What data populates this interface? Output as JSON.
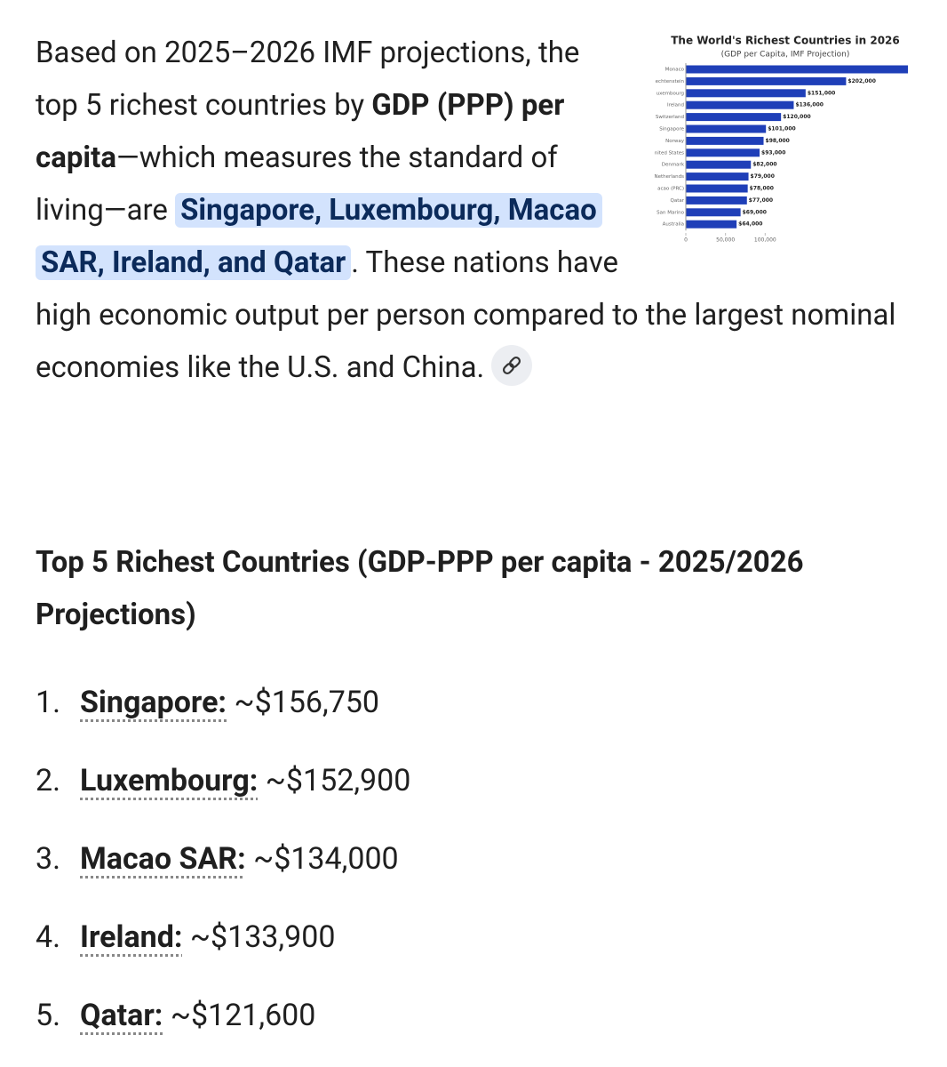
{
  "intro": {
    "before": "Based on 2025–2026 IMF projections, the top 5 richest countries by ",
    "bold": "GDP (PPP) per capita",
    "middle": "—which measures the standard of living—are ",
    "highlight": "Singapore, Luxembourg, Macao SAR, Ireland, and Qatar",
    "after": ". These nations have high economic output per person compared to the largest nominal economies like the U.S. and China."
  },
  "chart_data": {
    "type": "bar",
    "orientation": "horizontal",
    "title": "The World's Richest Countries in 2026",
    "subtitle": "(GDP per Capita, IMF Projection)",
    "categories": [
      "Monaco",
      "echtenstein",
      "uxembourg",
      "Ireland",
      "Switzerland",
      "Singapore",
      "Norway",
      "nited States",
      "Denmark",
      "Netherlands",
      "acao (PRC)",
      "Qatar",
      "San Marino",
      "Australia"
    ],
    "values": [
      280000,
      202000,
      151000,
      136000,
      120000,
      101000,
      98000,
      93000,
      82000,
      79000,
      78000,
      77000,
      69000,
      64000
    ],
    "value_labels": [
      null,
      "$202,000",
      "$151,000",
      "$136,000",
      "$120,000",
      "$101,000",
      "$98,000",
      "$93,000",
      "$82,000",
      "$79,000",
      "$78,000",
      "$77,000",
      "$69,000",
      "$64,000"
    ],
    "color": "#1f3fb8",
    "xlim": [
      0,
      290000
    ],
    "xticks": [
      0,
      {
        "value": 50000,
        "label": "50,000"
      },
      {
        "value": 100000,
        "label": "100,000"
      }
    ]
  },
  "heading": "Top 5 Richest Countries (GDP-PPP per capita - 2025/2026 Projections)",
  "list": [
    {
      "number": "1.",
      "name": "Singapore:",
      "value": "~$156,750"
    },
    {
      "number": "2.",
      "name": "Luxembourg:",
      "value": "~$152,900"
    },
    {
      "number": "3.",
      "name": "Macao SAR:",
      "value": "~$134,000"
    },
    {
      "number": "4.",
      "name": "Ireland:",
      "value": "~$133,900"
    },
    {
      "number": "5.",
      "name": "Qatar:",
      "value": "~$121,600"
    }
  ]
}
